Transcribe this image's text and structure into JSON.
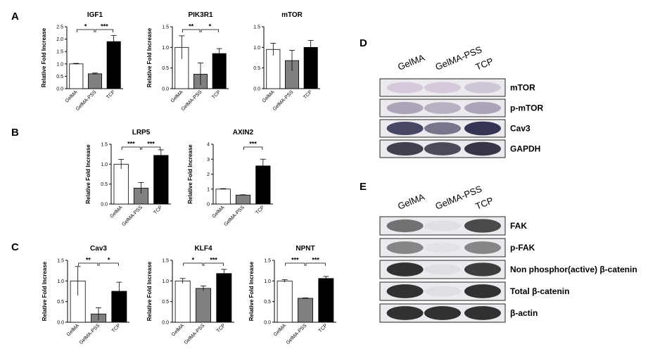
{
  "panels": {
    "A": "A",
    "B": "B",
    "C": "C",
    "D": "D",
    "E": "E"
  },
  "chart_data": [
    {
      "panel": "A",
      "type": "bar",
      "title": "IGF1",
      "ylabel": "Relative Fold Increase",
      "categories": [
        "GelMA",
        "GelMA-PSS",
        "TCP"
      ],
      "values": [
        1.0,
        0.6,
        1.9
      ],
      "errors": [
        0.02,
        0.03,
        0.25
      ],
      "ylim": [
        0,
        2.5
      ],
      "yticks": [
        "0.0",
        "0.5",
        "1.0",
        "1.5",
        "2.0",
        "2.5"
      ],
      "significance": [
        {
          "from": 0,
          "to": 1,
          "label": "*"
        },
        {
          "from": 1,
          "to": 2,
          "label": "***"
        }
      ]
    },
    {
      "panel": "A",
      "type": "bar",
      "title": "PIK3R1",
      "ylabel": "Relative Fold Increase",
      "categories": [
        "GelMA",
        "GelMA-PSS",
        "TCP"
      ],
      "values": [
        1.0,
        0.35,
        0.85
      ],
      "errors": [
        0.28,
        0.27,
        0.12
      ],
      "ylim": [
        0,
        1.5
      ],
      "yticks": [
        "0.0",
        "0.5",
        "1.0",
        "1.5"
      ],
      "significance": [
        {
          "from": 0,
          "to": 1,
          "label": "**"
        },
        {
          "from": 1,
          "to": 2,
          "label": "*"
        }
      ]
    },
    {
      "panel": "A",
      "type": "bar",
      "title": "mTOR",
      "ylabel": "",
      "categories": [
        "GelMA",
        "GelMA-PSS",
        "TCP"
      ],
      "values": [
        0.95,
        0.68,
        1.0
      ],
      "errors": [
        0.15,
        0.25,
        0.17
      ],
      "ylim": [
        0,
        1.5
      ],
      "yticks": [
        "0.0",
        "0.5",
        "1.0",
        "1.5"
      ],
      "significance": []
    },
    {
      "panel": "B",
      "type": "bar",
      "title": "LRP5",
      "ylabel": "Relative Fold Increase",
      "categories": [
        "GelMA",
        "GelMA-PSS",
        "TCP"
      ],
      "values": [
        1.0,
        0.4,
        1.22
      ],
      "errors": [
        0.12,
        0.14,
        0.14
      ],
      "ylim": [
        0,
        1.5
      ],
      "yticks": [
        "0.0",
        "0.5",
        "1.0",
        "1.5"
      ],
      "significance": [
        {
          "from": 0,
          "to": 1,
          "label": "***"
        },
        {
          "from": 1,
          "to": 2,
          "label": "***"
        }
      ]
    },
    {
      "panel": "B",
      "type": "bar",
      "title": "AXIN2",
      "ylabel": "Relative Fold Increase",
      "categories": [
        "GelMA",
        "GelMA-PSS",
        "TCP"
      ],
      "values": [
        1.0,
        0.6,
        2.55
      ],
      "errors": [
        0.03,
        0.02,
        0.45
      ],
      "ylim": [
        0,
        4
      ],
      "yticks": [
        "0",
        "1",
        "2",
        "3",
        "4"
      ],
      "significance": [
        {
          "from": 1,
          "to": 2,
          "label": "***"
        }
      ]
    },
    {
      "panel": "C",
      "type": "bar",
      "title": "Cav3",
      "ylabel": "Relative Fold Increase",
      "categories": [
        "GelMA",
        "GelMA-PSS",
        "TCP"
      ],
      "values": [
        1.0,
        0.2,
        0.75
      ],
      "errors": [
        0.35,
        0.15,
        0.22
      ],
      "ylim": [
        0,
        1.5
      ],
      "yticks": [
        "0.0",
        "0.5",
        "1.0",
        "1.5"
      ],
      "significance": [
        {
          "from": 0,
          "to": 1,
          "label": "**"
        },
        {
          "from": 1,
          "to": 2,
          "label": "*"
        }
      ]
    },
    {
      "panel": "C",
      "type": "bar",
      "title": "KLF4",
      "ylabel": "Relative Fold Increase",
      "categories": [
        "GelMA",
        "GelMA-PSS",
        "TCP"
      ],
      "values": [
        1.0,
        0.82,
        1.18
      ],
      "errors": [
        0.06,
        0.06,
        0.1
      ],
      "ylim": [
        0,
        1.5
      ],
      "yticks": [
        "0.0",
        "0.5",
        "1.0",
        "1.5"
      ],
      "significance": [
        {
          "from": 0,
          "to": 1,
          "label": "*"
        },
        {
          "from": 1,
          "to": 2,
          "label": "***"
        }
      ]
    },
    {
      "panel": "C",
      "type": "bar",
      "title": "NPNT",
      "ylabel": "Relative Fold Increase",
      "categories": [
        "GelMA",
        "GelMA-PSS",
        "TCP"
      ],
      "values": [
        1.0,
        0.58,
        1.06
      ],
      "errors": [
        0.03,
        0.01,
        0.05
      ],
      "ylim": [
        0,
        1.5
      ],
      "yticks": [
        "0.0",
        "0.5",
        "1.0",
        "1.5"
      ],
      "significance": [
        {
          "from": 0,
          "to": 1,
          "label": "***"
        },
        {
          "from": 1,
          "to": 2,
          "label": "***"
        }
      ]
    }
  ],
  "blots": [
    {
      "panel": "D",
      "columns": [
        "GelMA",
        "GelMA-PSS",
        "TCP"
      ],
      "rows": [
        {
          "label": "mTOR",
          "intensity": [
            0.3,
            0.3,
            0.35
          ],
          "tint": "#9a86a8"
        },
        {
          "label": "p-mTOR",
          "intensity": [
            0.55,
            0.45,
            0.55
          ],
          "tint": "#7a6c8c"
        },
        {
          "label": "Cav3",
          "intensity": [
            0.85,
            0.6,
            0.95
          ],
          "tint": "#2a2a4a"
        },
        {
          "label": "GAPDH",
          "intensity": [
            0.85,
            0.8,
            0.9
          ],
          "tint": "#222233"
        }
      ]
    },
    {
      "panel": "E",
      "columns": [
        "GelMA",
        "GelMA-PSS",
        "TCP"
      ],
      "rows": [
        {
          "label": "FAK",
          "intensity": [
            0.6,
            0.05,
            0.8
          ],
          "tint": "#222222"
        },
        {
          "label": "p-FAK",
          "intensity": [
            0.55,
            0.04,
            0.55
          ],
          "tint": "#333333"
        },
        {
          "label": "Non phosphor(active) β-catenin",
          "intensity": [
            0.85,
            0.05,
            0.8
          ],
          "tint": "#111111"
        },
        {
          "label": "Total β-catenin",
          "intensity": [
            0.85,
            0.05,
            0.85
          ],
          "tint": "#111111"
        },
        {
          "label": "β-actin",
          "intensity": [
            0.85,
            0.85,
            0.85
          ],
          "tint": "#111111"
        }
      ]
    }
  ],
  "colors": {
    "GelMA": "#ffffff",
    "GelMA-PSS": "#808080",
    "TCP": "#000000"
  }
}
